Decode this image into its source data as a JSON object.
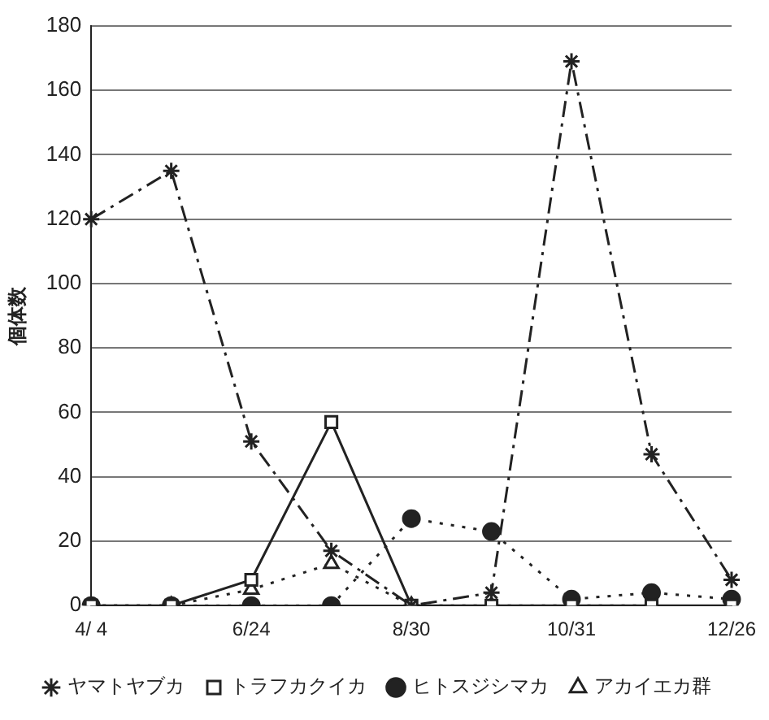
{
  "chart_data": {
    "type": "line",
    "ylabel": "個体数",
    "categories": [
      "4/ 4",
      null,
      "6/24",
      null,
      "8/30",
      null,
      "10/31",
      null,
      "12/26"
    ],
    "series": [
      {
        "name": "ヤマトヤブカ",
        "color": "#222222",
        "marker": "cross",
        "line_style": "dashed",
        "values": [
          120,
          135,
          51,
          17,
          0,
          4,
          169,
          47,
          8
        ]
      },
      {
        "name": "トラフカクイカ",
        "color": "#222222",
        "marker": "square",
        "line_style": "solid",
        "values": [
          0,
          0,
          8,
          57,
          0,
          0,
          0,
          0,
          0
        ]
      },
      {
        "name": "ヒトスジシマカ",
        "color": "#222222",
        "marker": "circle",
        "line_style": "dotted",
        "values": [
          0,
          0,
          0,
          0,
          27,
          23,
          2,
          4,
          2
        ]
      },
      {
        "name": "アカイエカ群",
        "color": "#222222",
        "marker": "triangle",
        "line_style": "dotted",
        "values": [
          0,
          0,
          5,
          13,
          0,
          0,
          0,
          0,
          null
        ]
      }
    ],
    "ylim": [
      0,
      180
    ],
    "yticks": [
      0,
      20,
      40,
      60,
      80,
      100,
      120,
      140,
      160,
      180
    ],
    "grid": "y",
    "legend": "bottom"
  }
}
